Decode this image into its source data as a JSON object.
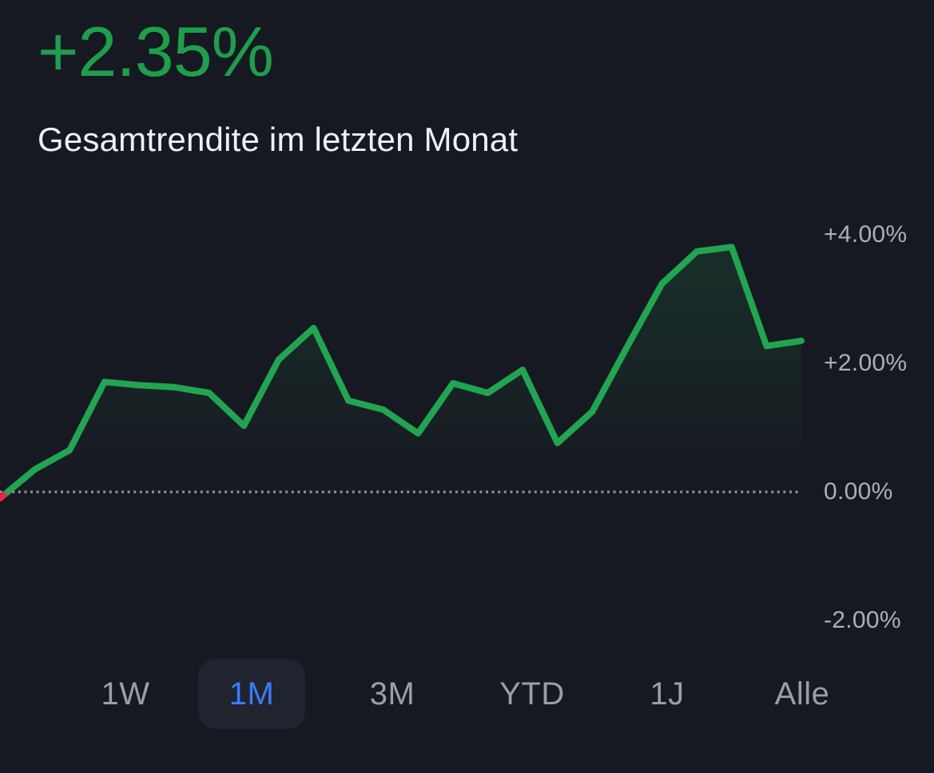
{
  "header": {
    "return_value": "+2.35%",
    "subtitle": "Gesamtrendite im letzten Monat"
  },
  "chart_data": {
    "type": "area",
    "title": "Gesamtrendite im letzten Monat",
    "xlabel": "",
    "ylabel": "",
    "unit": "percent",
    "x_description": "24 evenly spaced points over the last month, left to right",
    "values": [
      -0.1,
      0.35,
      0.65,
      1.71,
      1.66,
      1.63,
      1.54,
      1.03,
      2.06,
      2.55,
      1.42,
      1.28,
      0.91,
      1.69,
      1.54,
      1.9,
      0.76,
      1.25,
      2.26,
      3.24,
      3.74,
      3.81,
      2.27,
      2.35
    ],
    "baseline": 0,
    "ylim": [
      -2.8,
      4.4
    ],
    "y_ticks": [
      {
        "label": "+4.00%",
        "value": 4
      },
      {
        "label": "+2.00%",
        "value": 2
      },
      {
        "label": "0.00%",
        "value": 0
      },
      {
        "label": "-2.00%",
        "value": -2
      }
    ],
    "grid": "dotted zero baseline only",
    "legend_position": "none",
    "line_color_positive": "#22a551",
    "line_color_negative": "#e62b42",
    "area_color": "#22a551"
  },
  "periods": {
    "items": [
      {
        "label": "1W",
        "active": false
      },
      {
        "label": "1M",
        "active": true
      },
      {
        "label": "3M",
        "active": false
      },
      {
        "label": "YTD",
        "active": false
      },
      {
        "label": "1J",
        "active": false
      },
      {
        "label": "Alle",
        "active": false
      }
    ]
  },
  "colors": {
    "background": "#171922",
    "headline_green": "#1f9e4b",
    "subtitle_text": "#eef0f3",
    "axis_label": "#abafb9",
    "period_inactive": "#9a9ea8",
    "period_active": "#3b7df6",
    "period_active_bg": "#20242f",
    "zero_line": "#b7bac1"
  }
}
